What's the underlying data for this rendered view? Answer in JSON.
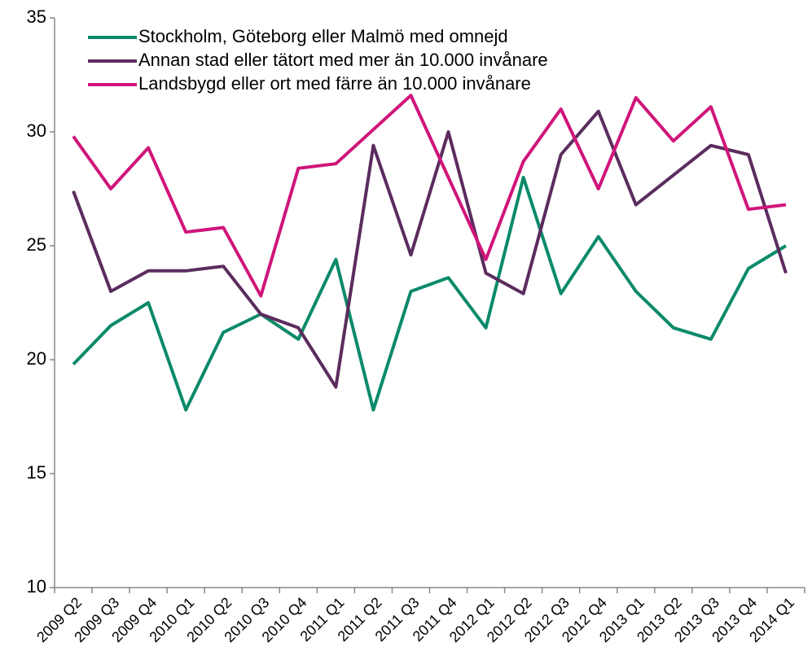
{
  "chart_data": {
    "type": "line",
    "categories": [
      "2009 Q2",
      "2009 Q3",
      "2009 Q4",
      "2010 Q1",
      "2010 Q2",
      "2010 Q3",
      "2010 Q4",
      "2011 Q1",
      "2011 Q2",
      "2011 Q3",
      "2011 Q4",
      "2012 Q1",
      "2012 Q2",
      "2012 Q3",
      "2012 Q4",
      "2013 Q1",
      "2013 Q2",
      "2013 Q3",
      "2013 Q4",
      "2014 Q1"
    ],
    "series": [
      {
        "name": "Stockholm, Göteborg eller Malmö med omnejd",
        "color": "#0b8a6a",
        "values": [
          19.8,
          21.5,
          22.5,
          17.8,
          21.2,
          22.0,
          20.9,
          24.4,
          17.8,
          23.0,
          23.6,
          21.4,
          28.0,
          22.9,
          25.4,
          23.0,
          21.4,
          20.9,
          24.0,
          25.0
        ]
      },
      {
        "name": "Annan stad eller tätort med mer än 10.000 invånare",
        "color": "#5b2c5e",
        "values": [
          27.4,
          23.0,
          23.9,
          23.9,
          24.1,
          22.0,
          21.4,
          18.8,
          29.4,
          24.6,
          30.0,
          23.8,
          22.9,
          29.0,
          30.9,
          26.8,
          28.1,
          29.4,
          29.0,
          23.8
        ]
      },
      {
        "name": "Landsbygd eller ort med färre än 10.000 invånare",
        "color": "#d0157a",
        "values": [
          29.8,
          27.5,
          29.3,
          25.6,
          25.8,
          22.8,
          28.4,
          28.6,
          30.1,
          31.6,
          28.0,
          24.4,
          28.7,
          31.0,
          27.5,
          31.5,
          29.6,
          31.1,
          26.6,
          26.8
        ]
      }
    ],
    "ylim": [
      10,
      35
    ],
    "yticks": [
      10,
      15,
      20,
      25,
      30,
      35
    ],
    "grid": false,
    "legend": "top-left"
  }
}
